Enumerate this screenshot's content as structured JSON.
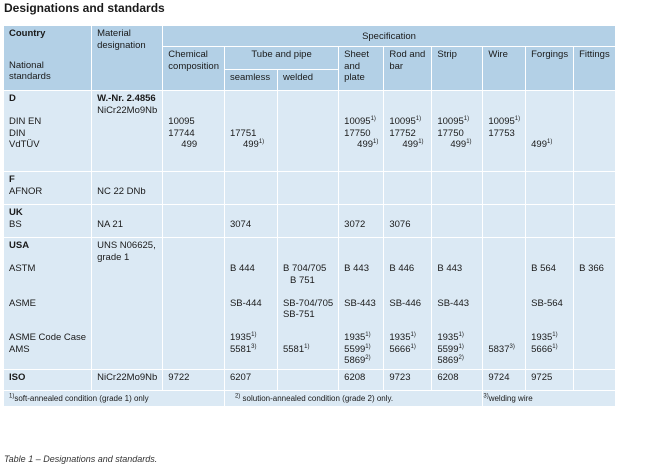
{
  "title": "Designations and standards",
  "caption": "Table 1 – Designations and standards.",
  "header": {
    "country": "Country",
    "national_standards": "National standards",
    "material_designation": "Material designation",
    "specification": "Specification",
    "chemical_composition": "Chemical composition",
    "tube_and_pipe": "Tube and pipe",
    "seamless": "seamless",
    "welded": "welded",
    "sheet_and_plate": "Sheet and plate",
    "rod_and_bar": "Rod and bar",
    "strip": "Strip",
    "wire": "Wire",
    "forgings": "Forgings",
    "fittings": "Fittings"
  },
  "rows": {
    "d": {
      "country": "D",
      "standards": [
        "DIN EN",
        "DIN",
        "VdTÜV"
      ],
      "material": [
        "W.-Nr. 2.4856",
        "NiCr22Mo9Nb"
      ],
      "chem": [
        "10095",
        "17744",
        "499"
      ],
      "seamless": [
        "17751",
        "499"
      ],
      "sheet": [
        "10095",
        "17750",
        "499"
      ],
      "rod": [
        "10095",
        "17752",
        "499"
      ],
      "strip": [
        "10095",
        "17750",
        "499"
      ],
      "wire": [
        "10095",
        "17753"
      ],
      "forgings": [
        "499"
      ],
      "sup1": "1)"
    },
    "f": {
      "country": "F",
      "standards": [
        "AFNOR"
      ],
      "material": "NC 22 DNb"
    },
    "uk": {
      "country": "UK",
      "standards": [
        "BS"
      ],
      "material": "NA 21",
      "seamless": "3074",
      "sheet": "3072",
      "rod": "3076"
    },
    "usa": {
      "country": "USA",
      "standards": [
        "ASTM",
        "ASME",
        "ASME Code Case",
        "AMS"
      ],
      "material": [
        "UNS N06625,",
        "grade 1"
      ],
      "astm": {
        "seamless": "B 444",
        "welded": [
          "B 704/705",
          "B 751"
        ],
        "sheet": "B 443",
        "rod": "B 446",
        "strip": "B 443",
        "forgings": "B 564",
        "fittings": "B 366"
      },
      "asme": {
        "seamless": "SB-444",
        "welded": [
          "SB-704/705",
          "SB-751"
        ],
        "sheet": "SB-443",
        "rod": "SB-446",
        "strip": "SB-443",
        "forgings": "SB-564"
      },
      "code_case": {
        "seamless": "1935",
        "sheet": "1935",
        "rod": "1935",
        "strip": "1935",
        "forgings": "1935"
      },
      "ams": {
        "seamless": "5581",
        "welded": "5581",
        "sheet": [
          "5599",
          "5869"
        ],
        "rod": "5666",
        "strip": [
          "5599",
          "5869"
        ],
        "wire": "5837",
        "forgings": "5666"
      },
      "sup1": "1)",
      "sup2": "2)",
      "sup3": "3)"
    },
    "iso": {
      "country": "ISO",
      "material": "NiCr22Mo9Nb",
      "chem": "9722",
      "seamless": "6207",
      "sheet": "6208",
      "rod": "9723",
      "strip": "6208",
      "wire": "9724",
      "forgings": "9725"
    }
  },
  "footnotes": {
    "f1_mark": "1)",
    "f1": "soft-annealed condition (grade 1) only",
    "f2_mark": "2)",
    "f2": " solution-annealed condition (grade 2) only.",
    "f3_mark": "3)",
    "f3": "welding wire"
  }
}
